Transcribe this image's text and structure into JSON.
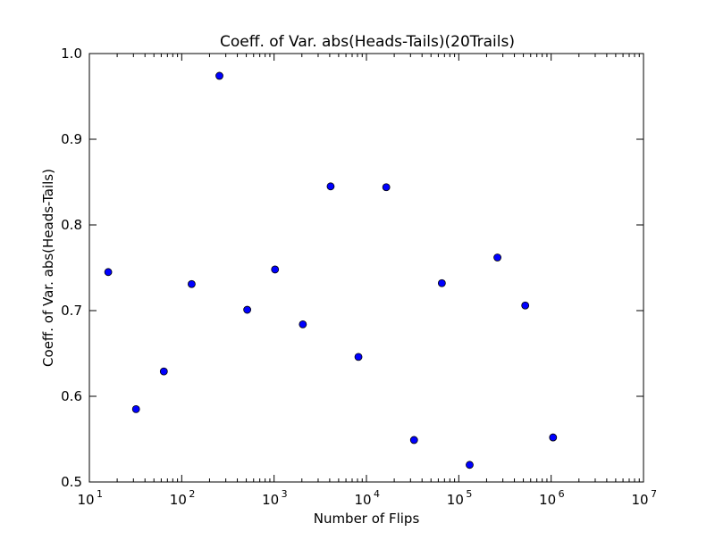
{
  "chart_data": {
    "type": "scatter",
    "title": "Coeff. of Var. abs(Heads-Tails)(20Trails)",
    "xlabel": "Number of Flips",
    "ylabel": "Coeff. of Var. abs(Heads-Tails)",
    "x_scale": "log",
    "xlim": [
      10,
      10000000
    ],
    "ylim": [
      0.5,
      1.0
    ],
    "grid": false,
    "marker_color": "#0000ff",
    "x_ticks": [
      {
        "base": "10",
        "exp": "1"
      },
      {
        "base": "10",
        "exp": "2"
      },
      {
        "base": "10",
        "exp": "3"
      },
      {
        "base": "10",
        "exp": "4"
      },
      {
        "base": "10",
        "exp": "5"
      },
      {
        "base": "10",
        "exp": "6"
      },
      {
        "base": "10",
        "exp": "7"
      }
    ],
    "y_ticks": [
      "0.5",
      "0.6",
      "0.7",
      "0.8",
      "0.9",
      "1.0"
    ],
    "points": [
      {
        "x": 16,
        "y": 0.745
      },
      {
        "x": 32,
        "y": 0.585
      },
      {
        "x": 64,
        "y": 0.629
      },
      {
        "x": 128,
        "y": 0.731
      },
      {
        "x": 256,
        "y": 0.974
      },
      {
        "x": 512,
        "y": 0.701
      },
      {
        "x": 1024,
        "y": 0.748
      },
      {
        "x": 2048,
        "y": 0.684
      },
      {
        "x": 4096,
        "y": 0.845
      },
      {
        "x": 8192,
        "y": 0.646
      },
      {
        "x": 16384,
        "y": 0.844
      },
      {
        "x": 32768,
        "y": 0.549
      },
      {
        "x": 65536,
        "y": 0.732
      },
      {
        "x": 131072,
        "y": 0.52
      },
      {
        "x": 262144,
        "y": 0.762
      },
      {
        "x": 524288,
        "y": 0.706
      },
      {
        "x": 1048576,
        "y": 0.552
      }
    ]
  }
}
